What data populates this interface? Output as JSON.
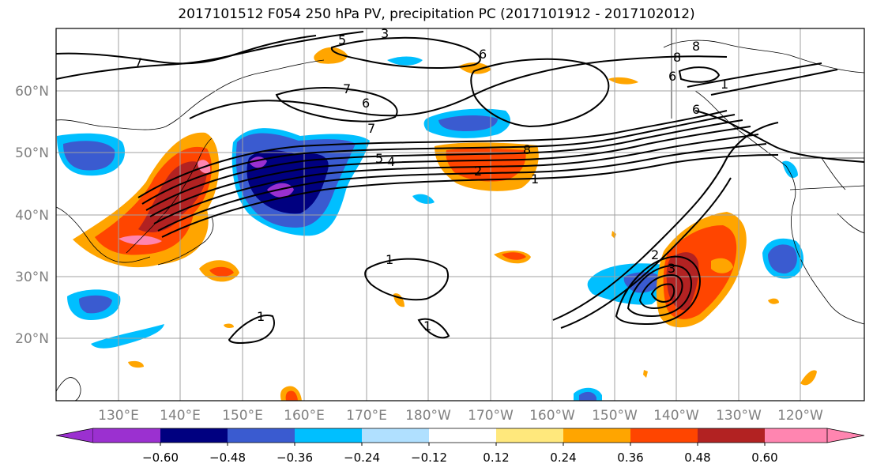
{
  "title": "2017101512 F054 250 hPa PV, precipitation PC (2017101912 - 2017102012)",
  "lat_labels": [
    "60°N",
    "50°N",
    "40°N",
    "30°N",
    "20°N"
  ],
  "lon_labels": [
    "130°E",
    "140°E",
    "150°E",
    "160°E",
    "170°E",
    "180°W",
    "170°W",
    "160°W",
    "150°W",
    "140°W",
    "130°W",
    "120°W"
  ],
  "contour_labels": [
    "7",
    "6",
    "7",
    "5",
    "4",
    "2",
    "1",
    "8",
    "7",
    "8",
    "6",
    "6",
    "5",
    "3",
    "8",
    "6",
    "2",
    "3",
    "1",
    "1",
    "1",
    "1"
  ],
  "colorbar": {
    "ticks": [
      "−0.60",
      "−0.48",
      "−0.36",
      "−0.24",
      "−0.12",
      "0.12",
      "0.24",
      "0.36",
      "0.48",
      "0.60"
    ],
    "colors": [
      "#9b30d0",
      "#000080",
      "#3a5bd0",
      "#00bfff",
      "#b0e0ff",
      "#ffffff",
      "#ffe87c",
      "#ffa500",
      "#ff4500",
      "#b22222",
      "#ff85b0",
      "#ff85b0"
    ]
  },
  "palette": {
    "purple": "#9b30d0",
    "navy": "#000080",
    "royal": "#3a5bd0",
    "sky": "#00bfff",
    "lightblue": "#b0e0ff",
    "yellow": "#ffe87c",
    "orange": "#ffa500",
    "redorange": "#ff4500",
    "firebrick": "#b22222",
    "pink": "#ff85b0",
    "axis_label": "#808080",
    "grid": "#a0a0a0"
  }
}
